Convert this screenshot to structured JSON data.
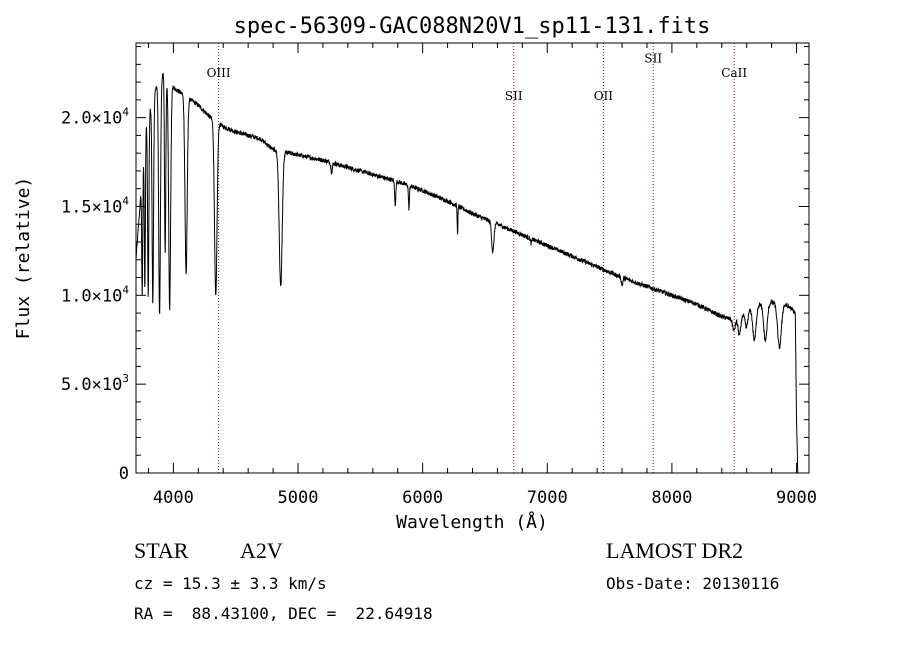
{
  "chart_data": {
    "type": "line",
    "title": "spec-56309-GAC088N20V1_sp11-131.fits",
    "xlabel": "Wavelength (Å)",
    "ylabel": "Flux (relative)",
    "xlim": [
      3700,
      9100
    ],
    "ylim": [
      0,
      24200
    ],
    "x_ticks": [
      {
        "value": 4000,
        "label": "4000"
      },
      {
        "value": 5000,
        "label": "5000"
      },
      {
        "value": 6000,
        "label": "6000"
      },
      {
        "value": 7000,
        "label": "7000"
      },
      {
        "value": 8000,
        "label": "8000"
      },
      {
        "value": 9000,
        "label": "9000"
      }
    ],
    "y_ticks": [
      {
        "value": 0,
        "mant": "0",
        "exp": ""
      },
      {
        "value": 5000,
        "mant": "5.0×10",
        "exp": "3"
      },
      {
        "value": 10000,
        "mant": "1.0×10",
        "exp": "4"
      },
      {
        "value": 15000,
        "mant": "1.5×10",
        "exp": "4"
      },
      {
        "value": 20000,
        "mant": "2.0×10",
        "exp": "4"
      }
    ],
    "line_markers": [
      {
        "name": "OIII",
        "x": 4363,
        "label_y": 22300
      },
      {
        "name": "SII",
        "x": 6731,
        "label_y": 21000
      },
      {
        "name": "OII",
        "x": 7450,
        "label_y": 21000
      },
      {
        "name": "SII",
        "x": 7850,
        "label_y": 23100
      },
      {
        "name": "CaII",
        "x": 8500,
        "label_y": 22300
      }
    ],
    "continuum": [
      [
        3700,
        12000
      ],
      [
        3780,
        19500
      ],
      [
        3850,
        21500
      ],
      [
        3920,
        22500
      ],
      [
        4000,
        21700
      ],
      [
        4100,
        21200
      ],
      [
        4200,
        20700
      ],
      [
        4300,
        20000
      ],
      [
        4400,
        19500
      ],
      [
        4500,
        19200
      ],
      [
        4600,
        19000
      ],
      [
        4700,
        18800
      ],
      [
        4800,
        18200
      ],
      [
        5000,
        17900
      ],
      [
        5200,
        17600
      ],
      [
        5400,
        17200
      ],
      [
        5600,
        16800
      ],
      [
        5800,
        16400
      ],
      [
        6000,
        15900
      ],
      [
        6200,
        15300
      ],
      [
        6400,
        14600
      ],
      [
        6600,
        14000
      ],
      [
        6800,
        13400
      ],
      [
        7000,
        12800
      ],
      [
        7200,
        12200
      ],
      [
        7400,
        11600
      ],
      [
        7600,
        11000
      ],
      [
        7800,
        10500
      ],
      [
        8000,
        10000
      ],
      [
        8200,
        9500
      ],
      [
        8400,
        8800
      ],
      [
        8500,
        8600
      ],
      [
        8600,
        9100
      ],
      [
        8700,
        9500
      ],
      [
        8800,
        9600
      ],
      [
        8900,
        9500
      ],
      [
        8950,
        9300
      ],
      [
        8990,
        9000
      ],
      [
        9000,
        3000
      ],
      [
        9010,
        0
      ]
    ],
    "absorption_lines": [
      {
        "x": 3750,
        "depth": 0.4,
        "width": 4
      },
      {
        "x": 3771,
        "depth": 0.45,
        "width": 4
      },
      {
        "x": 3798,
        "depth": 0.5,
        "width": 5
      },
      {
        "x": 3835,
        "depth": 0.55,
        "width": 6
      },
      {
        "x": 3889,
        "depth": 0.6,
        "width": 7
      },
      {
        "x": 3934,
        "depth": 0.45,
        "width": 5
      },
      {
        "x": 3970,
        "depth": 0.58,
        "width": 8
      },
      {
        "x": 4102,
        "depth": 0.47,
        "width": 9
      },
      {
        "x": 4340,
        "depth": 0.5,
        "width": 10
      },
      {
        "x": 4861,
        "depth": 0.42,
        "width": 12
      },
      {
        "x": 5270,
        "depth": 0.03,
        "width": 6
      },
      {
        "x": 5780,
        "depth": 0.08,
        "width": 5
      },
      {
        "x": 5890,
        "depth": 0.08,
        "width": 4
      },
      {
        "x": 6280,
        "depth": 0.1,
        "width": 3
      },
      {
        "x": 6563,
        "depth": 0.12,
        "width": 9
      },
      {
        "x": 6870,
        "depth": 0.02,
        "width": 5
      },
      {
        "x": 7600,
        "depth": 0.04,
        "width": 6
      },
      {
        "x": 8498,
        "depth": 0.07,
        "width": 10
      },
      {
        "x": 8542,
        "depth": 0.12,
        "width": 11
      },
      {
        "x": 8598,
        "depth": 0.1,
        "width": 11
      },
      {
        "x": 8662,
        "depth": 0.2,
        "width": 13
      },
      {
        "x": 8750,
        "depth": 0.22,
        "width": 14
      },
      {
        "x": 8863,
        "depth": 0.26,
        "width": 15
      }
    ]
  },
  "info": {
    "object_type": "STAR",
    "subclass": "A2V",
    "survey": "LAMOST DR2",
    "redshift_line": "cz = 15.3 ± 3.3 km/s",
    "obs_date_line": "Obs-Date: 20130116",
    "coords_line": "RA =  88.43100, DEC =  22.64918"
  },
  "colors": {
    "spectrum": "#000000",
    "marker": "#8b1a1a",
    "axes": "#000000"
  }
}
